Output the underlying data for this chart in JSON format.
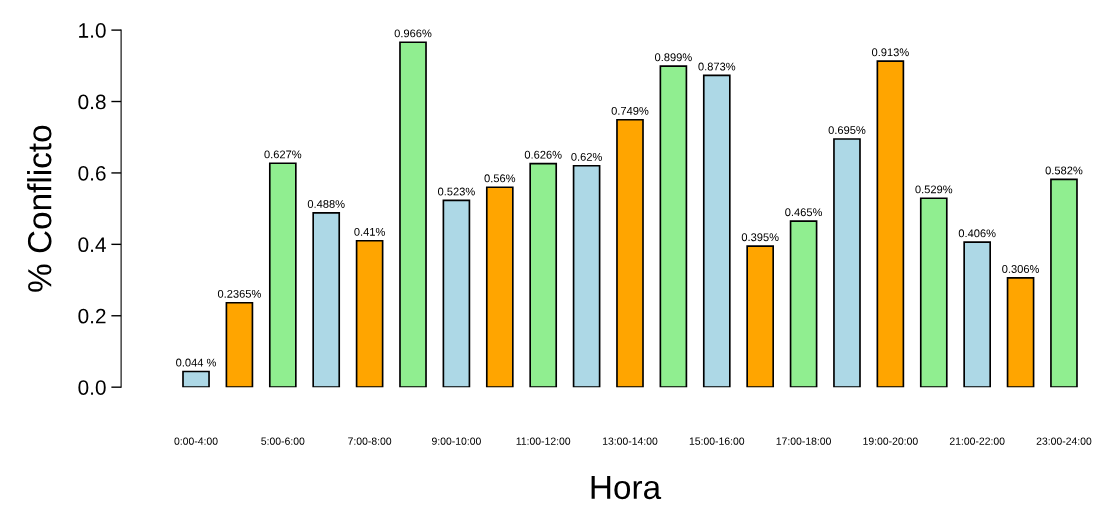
{
  "chart_data": {
    "type": "bar",
    "xlabel": "Hora",
    "ylabel": "% Conflicto",
    "categories": [
      "0:00-4:00",
      null,
      "5:00-6:00",
      null,
      "7:00-8:00",
      null,
      "9:00-10:00",
      null,
      "11:00-12:00",
      null,
      "13:00-14:00",
      null,
      "15:00-16:00",
      null,
      "17:00-18:00",
      null,
      "19:00-20:00",
      null,
      "21:00-22:00",
      null,
      "23:00-24:00"
    ],
    "values": [
      0.044,
      0.2365,
      0.627,
      0.488,
      0.41,
      0.966,
      0.523,
      0.56,
      0.626,
      0.62,
      0.749,
      0.899,
      0.873,
      0.395,
      0.465,
      0.695,
      0.913,
      0.529,
      0.406,
      0.306,
      0.582
    ],
    "value_labels": [
      "0.044 %",
      "0.2365%",
      "0.627%",
      "0.488%",
      "0.41%",
      "0.966%",
      "0.523%",
      "0.56%",
      "0.626%",
      "0.62%",
      "0.749%",
      "0.899%",
      "0.873%",
      "0.395%",
      "0.465%",
      "0.695%",
      "0.913%",
      "0.529%",
      "0.406%",
      "0.306%",
      "0.582%"
    ],
    "colors": [
      "#add8e6",
      "#ffa500",
      "#90ee90",
      "#add8e6",
      "#ffa500",
      "#90ee90",
      "#add8e6",
      "#ffa500",
      "#90ee90",
      "#add8e6",
      "#ffa500",
      "#90ee90",
      "#add8e6",
      "#ffa500",
      "#90ee90",
      "#add8e6",
      "#ffa500",
      "#90ee90",
      "#add8e6",
      "#ffa500",
      "#90ee90"
    ],
    "ylim": [
      0,
      1
    ],
    "yticks": [
      {
        "value": 0,
        "label": "0.0"
      },
      {
        "value": 0.2,
        "label": "0.2"
      },
      {
        "value": 0.4,
        "label": "0.4"
      },
      {
        "value": 0.6,
        "label": "0.6"
      },
      {
        "value": 0.8,
        "label": "0.8"
      },
      {
        "value": 1,
        "label": "1.0"
      }
    ],
    "grid": false,
    "legend": false
  }
}
